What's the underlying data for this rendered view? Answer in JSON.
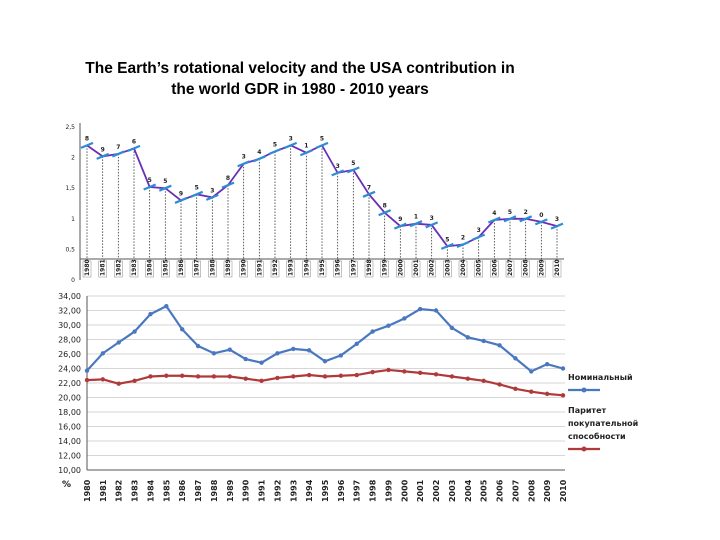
{
  "title_lines": [
    "The Earth’s rotational velocity and the USA contribution in",
    "the world GDR in 1980 - 2010 years"
  ],
  "colors": {
    "velocity_line": "#6a2fb5",
    "marker": "#2e8bd6",
    "nominal": "#4a78c0",
    "ppp": "#b03a3a",
    "grid": "#c8c8c8",
    "axis": "#555555"
  },
  "chart_data": [
    {
      "type": "line",
      "title": "",
      "xlabel": "",
      "ylabel": "",
      "ylim": [
        0,
        2.5
      ],
      "yticks": [
        "0",
        "0,5",
        "1",
        "1,5",
        "2",
        "2,5"
      ],
      "grid": "vertical dashed droplines",
      "categories": [
        "1980",
        "1981",
        "1982",
        "1983",
        "1984",
        "1985",
        "1986",
        "1987",
        "1988",
        "1989",
        "1990",
        "1991",
        "1992",
        "1993",
        "1994",
        "1995",
        "1996",
        "1997",
        "1998",
        "1999",
        "2000",
        "2001",
        "2002",
        "2003",
        "2004",
        "2005",
        "2006",
        "2007",
        "2008",
        "2009",
        "2010"
      ],
      "series": [
        {
          "values": [
            2.2,
            2.02,
            2.06,
            2.15,
            1.52,
            1.5,
            1.3,
            1.4,
            1.35,
            1.55,
            1.9,
            1.98,
            2.1,
            2.2,
            2.08,
            2.2,
            1.75,
            1.8,
            1.4,
            1.1,
            0.88,
            0.92,
            0.9,
            0.55,
            0.58,
            0.7,
            0.98,
            1.0,
            1.0,
            0.95,
            0.88
          ]
        }
      ],
      "point_labels": [
        "8",
        "9",
        "7",
        "6",
        "5",
        "5",
        "9",
        "5",
        "3",
        "8",
        "3",
        "4",
        "5",
        "3",
        "1",
        "5",
        "3",
        "5",
        "7",
        "8",
        "9",
        "1",
        "3",
        "5",
        "2",
        "3",
        "4",
        "5",
        "2",
        "0",
        "3"
      ]
    },
    {
      "type": "line",
      "title": "",
      "xlabel": "%",
      "ylabel": "",
      "ylim": [
        10,
        34
      ],
      "yticks": [
        "10,00",
        "12,00",
        "14,00",
        "16,00",
        "18,00",
        "20,00",
        "22,00",
        "24,00",
        "26,00",
        "28,00",
        "30,00",
        "32,00",
        "34,00"
      ],
      "grid": "horizontal",
      "legend": "right",
      "categories": [
        "1980",
        "1981",
        "1982",
        "1983",
        "1984",
        "1985",
        "1986",
        "1987",
        "1988",
        "1989",
        "1990",
        "1991",
        "1992",
        "1993",
        "1994",
        "1995",
        "1996",
        "1997",
        "1998",
        "1999",
        "2000",
        "2001",
        "2002",
        "2003",
        "2004",
        "2005",
        "2006",
        "2007",
        "2008",
        "2009",
        "2010"
      ],
      "series": [
        {
          "name": "Номинальный",
          "values": [
            23.7,
            26.1,
            27.6,
            29.1,
            31.5,
            32.6,
            29.4,
            27.1,
            26.1,
            26.6,
            25.3,
            24.8,
            26.1,
            26.7,
            26.5,
            25.0,
            25.8,
            27.4,
            29.1,
            29.9,
            30.9,
            32.2,
            32.0,
            29.6,
            28.3,
            27.8,
            27.2,
            25.4,
            23.6,
            24.6,
            24.0
          ]
        },
        {
          "name": "Паритет покупательной способности",
          "values": [
            22.4,
            22.5,
            21.9,
            22.3,
            22.9,
            23.0,
            23.0,
            22.9,
            22.9,
            22.9,
            22.6,
            22.3,
            22.7,
            22.9,
            23.1,
            22.9,
            23.0,
            23.1,
            23.5,
            23.8,
            23.6,
            23.4,
            23.2,
            22.9,
            22.6,
            22.3,
            21.8,
            21.2,
            20.8,
            20.5,
            20.3
          ]
        }
      ],
      "legend_entries": [
        {
          "lines": [
            "Номинальный"
          ]
        },
        {
          "lines": [
            "Паритет",
            "покупательной",
            "способности"
          ]
        }
      ]
    }
  ]
}
